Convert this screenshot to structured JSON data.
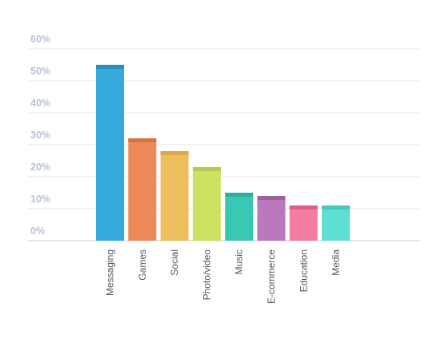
{
  "chart_data": {
    "type": "bar",
    "title": "",
    "xlabel": "",
    "ylabel": "",
    "categories": [
      "Messaging",
      "Games",
      "Social",
      "Photo/video",
      "Music",
      "E-commerce",
      "Education",
      "Media"
    ],
    "values": [
      55,
      32,
      28,
      23,
      15,
      14,
      11,
      11
    ],
    "unit": "%",
    "ylim": [
      0,
      60
    ],
    "yticks": [
      0,
      10,
      20,
      30,
      40,
      50,
      60
    ],
    "ytick_labels": [
      "0%",
      "10%",
      "20%",
      "30%",
      "40%",
      "50%",
      "60%"
    ],
    "grid": true,
    "legend": "none",
    "colors": [
      "#35a9db",
      "#ec8958",
      "#ecbe5c",
      "#cde062",
      "#39c8b4",
      "#b979bc",
      "#f47ca0",
      "#5ddfd4"
    ],
    "cap_colors": [
      "#2a8fbd",
      "#d8703f",
      "#e0a842",
      "#b6cc48",
      "#2cae9c",
      "#a0609f",
      "#e2607f",
      "#49c6bb"
    ]
  }
}
